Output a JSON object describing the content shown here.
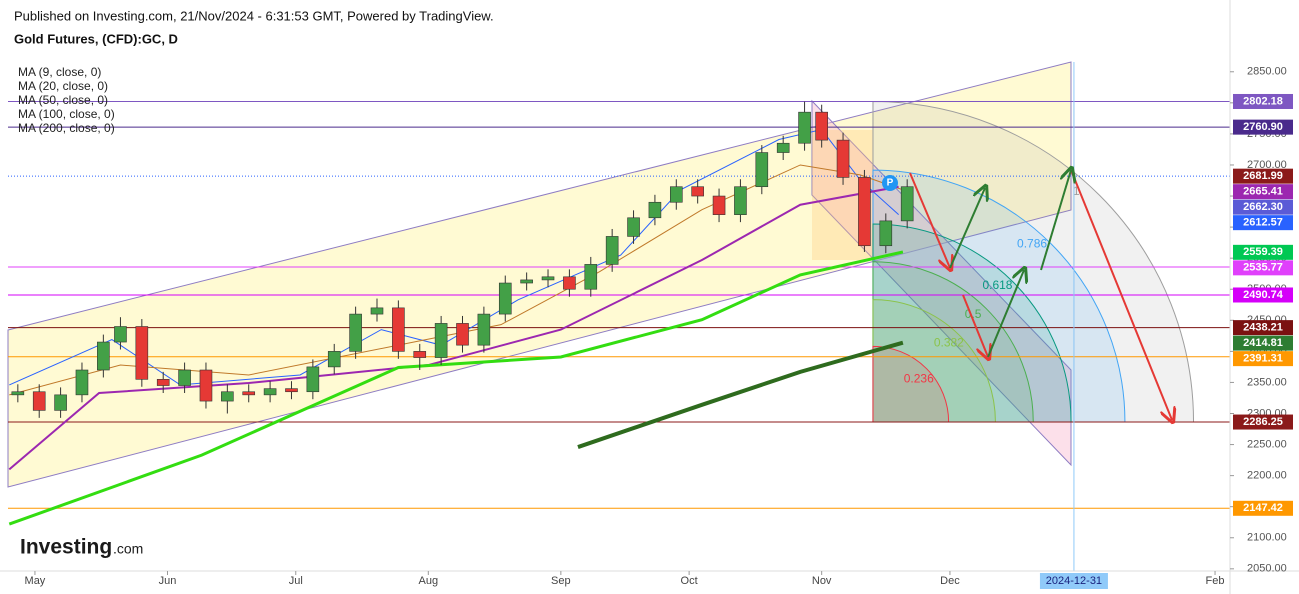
{
  "chart_data": {
    "type": "candlestick",
    "header": "Published on Investing.com, 21/Nov/2024 - 6:31:53 GMT, Powered by TradingView.",
    "title": "Gold Futures, (CFD):GC, D",
    "logo": "Investing",
    "logo_suffix": ".com",
    "badge": "P",
    "up_color": "#43a047",
    "down_color": "#e53935",
    "x": [
      -4,
      1,
      6,
      11,
      16,
      20,
      25,
      30,
      35,
      40,
      45,
      50,
      55,
      60,
      65,
      70,
      75,
      80,
      85,
      90,
      95,
      100,
      105,
      110,
      115,
      120,
      125,
      130,
      135,
      140,
      145,
      150,
      155,
      160,
      165,
      170,
      175,
      180,
      184,
      189,
      194,
      199,
      204
    ],
    "ohlc": [
      [
        2330,
        2347,
        2318,
        2335
      ],
      [
        2335,
        2347,
        2293,
        2305
      ],
      [
        2305,
        2342,
        2293,
        2330
      ],
      [
        2330,
        2382,
        2318,
        2370
      ],
      [
        2370,
        2427,
        2358,
        2415
      ],
      [
        2415,
        2455,
        2403,
        2440
      ],
      [
        2440,
        2452,
        2343,
        2355
      ],
      [
        2355,
        2367,
        2333,
        2345
      ],
      [
        2345,
        2382,
        2333,
        2370
      ],
      [
        2370,
        2382,
        2308,
        2320
      ],
      [
        2320,
        2347,
        2300,
        2335
      ],
      [
        2335,
        2347,
        2318,
        2330
      ],
      [
        2330,
        2352,
        2318,
        2340
      ],
      [
        2340,
        2352,
        2323,
        2335
      ],
      [
        2335,
        2387,
        2323,
        2375
      ],
      [
        2375,
        2412,
        2363,
        2400
      ],
      [
        2400,
        2472,
        2388,
        2460
      ],
      [
        2460,
        2485,
        2448,
        2470
      ],
      [
        2470,
        2482,
        2388,
        2400
      ],
      [
        2400,
        2412,
        2370,
        2390
      ],
      [
        2390,
        2457,
        2378,
        2445
      ],
      [
        2445,
        2457,
        2398,
        2410
      ],
      [
        2410,
        2472,
        2398,
        2460
      ],
      [
        2460,
        2522,
        2448,
        2510
      ],
      [
        2510,
        2527,
        2498,
        2515
      ],
      [
        2515,
        2532,
        2503,
        2520
      ],
      [
        2520,
        2532,
        2488,
        2500
      ],
      [
        2500,
        2552,
        2488,
        2540
      ],
      [
        2540,
        2597,
        2528,
        2585
      ],
      [
        2585,
        2627,
        2573,
        2615
      ],
      [
        2615,
        2652,
        2603,
        2640
      ],
      [
        2640,
        2677,
        2628,
        2665
      ],
      [
        2665,
        2677,
        2638,
        2650
      ],
      [
        2650,
        2662,
        2608,
        2620
      ],
      [
        2620,
        2677,
        2608,
        2665
      ],
      [
        2665,
        2732,
        2653,
        2720
      ],
      [
        2720,
        2747,
        2708,
        2735
      ],
      [
        2735,
        2802,
        2723,
        2785
      ],
      [
        2785,
        2797,
        2728,
        2740
      ],
      [
        2740,
        2752,
        2668,
        2680
      ],
      [
        2680,
        2692,
        2560,
        2570
      ],
      [
        2570,
        2622,
        2558,
        2610
      ],
      [
        2610,
        2677,
        2598,
        2665
      ]
    ],
    "indicators": [
      {
        "name": "MA (9, close, 0)",
        "color": "#2962ff",
        "width": 1,
        "x": [
          -6,
          18,
          34,
          62,
          81,
          95,
          113,
          137,
          151,
          174,
          184,
          193,
          202
        ],
        "values": [
          2346,
          2419,
          2346,
          2362,
          2435,
          2410,
          2483,
          2555,
          2660,
          2741,
          2757,
          2676,
          2620
        ]
      },
      {
        "name": "MA (20, close, 0)",
        "color": "#c0792a",
        "width": 1,
        "x": [
          -6,
          20,
          50,
          85,
          109,
          132,
          156,
          179,
          193,
          203
        ],
        "values": [
          2330,
          2378,
          2362,
          2410,
          2443,
          2528,
          2628,
          2700,
          2684,
          2660
        ]
      },
      {
        "name": "MA (50, close, 0)",
        "color": "#9c27b0",
        "width": 2,
        "x": [
          -6,
          15,
          50,
          92,
          123,
          156,
          179,
          202
        ],
        "values": [
          2210,
          2333,
          2349,
          2378,
          2435,
          2547,
          2636,
          2665
        ]
      },
      {
        "name": "MA (100, close, 0)",
        "color": "#33dd11",
        "width": 3,
        "x": [
          -6,
          39,
          85,
          123,
          156,
          179,
          203
        ],
        "values": [
          2122,
          2233,
          2374,
          2391,
          2451,
          2523,
          2560
        ]
      },
      {
        "name": "MA (200, close, 0)",
        "color": "#2e6b1e",
        "width": 4,
        "x": [
          127,
          156,
          179,
          203
        ],
        "values": [
          2246,
          2314,
          2367,
          2414
        ]
      }
    ],
    "levels": [
      {
        "value": 2802.18,
        "color": "#7e57c2",
        "line": "solid"
      },
      {
        "value": 2760.9,
        "label": "2760.90",
        "color": "#4a2a8c",
        "line": "solid"
      },
      {
        "value": 2681.99,
        "color": "#8b1a1a",
        "line": "dotted"
      },
      {
        "value": 2665.41,
        "color": "#9c27b0"
      },
      {
        "value": 2662.3,
        "label": "2662.30",
        "color": "#5b5bd6"
      },
      {
        "value": 2612.57,
        "color": "#2962ff"
      },
      {
        "value": 2559.39,
        "color": "#00c853"
      },
      {
        "value": 2535.77,
        "color": "#e040fb",
        "line": "solid"
      },
      {
        "value": 2490.74,
        "color": "#d500f9",
        "line": "solid"
      },
      {
        "value": 2438.21,
        "color": "#7b1111",
        "line": "solid"
      },
      {
        "value": 2414.81,
        "color": "#2e7d32"
      },
      {
        "value": 2391.31,
        "color": "#ff9800",
        "line": "solid"
      },
      {
        "value": 2286.25,
        "color": "#8b1a1a",
        "line": "solid"
      },
      {
        "value": 2147.42,
        "color": "#ff9800",
        "line": "solid"
      }
    ],
    "fib": {
      "x": [
        196,
        243
      ],
      "y": [
        2286.25,
        2802.18
      ],
      "levels": [
        1,
        0.786,
        0.618,
        0.5,
        0.382,
        0.236
      ],
      "colors": [
        "#9e9e9e",
        "#42a5f5",
        "#089981",
        "#4caf50",
        "#8bc34a",
        "#f23645"
      ]
    },
    "vline": {
      "value": 243,
      "label": "2024-12-31"
    },
    "xlim": [
      -6.3,
      279.5
    ],
    "xticks": [
      {
        "value": 0,
        "label": "May"
      },
      {
        "value": 31,
        "label": "Jun"
      },
      {
        "value": 61,
        "label": "Jul"
      },
      {
        "value": 92,
        "label": "Aug"
      },
      {
        "value": 123,
        "label": "Sep"
      },
      {
        "value": 153,
        "label": "Oct"
      },
      {
        "value": 184,
        "label": "Nov"
      },
      {
        "value": 214,
        "label": "Dec"
      },
      {
        "value": 276,
        "label": "Feb"
      }
    ],
    "ylim": [
      2046.5,
      2877
    ],
    "yticks": [
      {
        "value": 2050,
        "label": "2050.00"
      },
      {
        "value": 2100,
        "label": "2100.00"
      },
      {
        "value": 2150,
        "label": "2150.00"
      },
      {
        "value": 2200,
        "label": "2200.00"
      },
      {
        "value": 2250,
        "label": "2250.00"
      },
      {
        "value": 2300,
        "label": "2300.00"
      },
      {
        "value": 2350,
        "label": "2350.00"
      },
      {
        "value": 2400,
        "label": "2400.00"
      },
      {
        "value": 2450,
        "label": "2450.00"
      },
      {
        "value": 2500,
        "label": "2500.00"
      },
      {
        "value": 2550,
        "label": "2550.00"
      },
      {
        "value": 2600,
        "label": "2600.00"
      },
      {
        "value": 2650,
        "label": "2650.00"
      },
      {
        "value": 2700,
        "label": "2700.00"
      },
      {
        "value": 2750,
        "label": "2750.00"
      },
      {
        "value": 2800,
        "label": "2800.00"
      },
      {
        "value": 2850,
        "label": "2850.00"
      }
    ]
  }
}
